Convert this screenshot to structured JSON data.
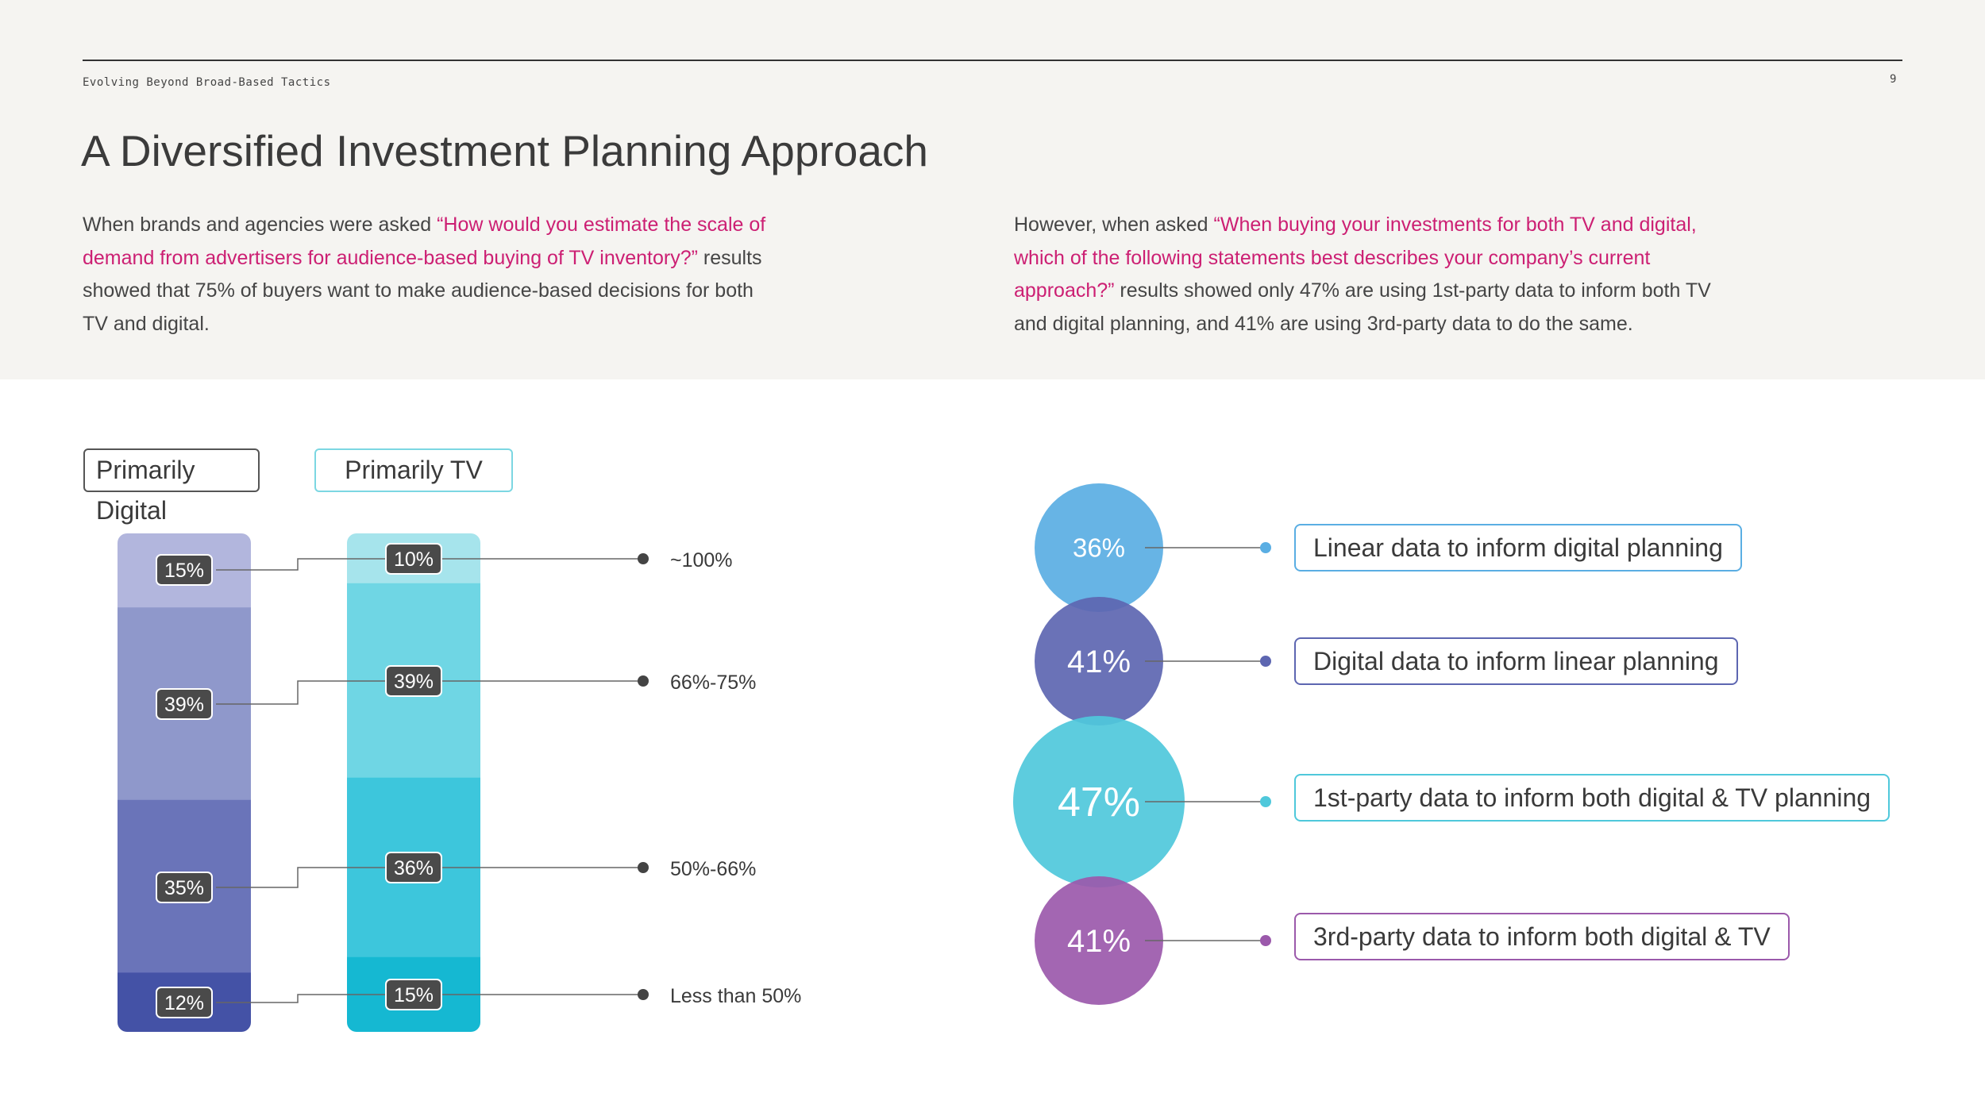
{
  "header": {
    "section_label": "Evolving Beyond Broad-Based Tactics",
    "page_number": "9",
    "title": "A Diversified Investment Planning Approach"
  },
  "intro_left": {
    "lead": "When brands and agencies were asked ",
    "quote": "“How would you estimate the scale of demand from advertisers for audience-based buying of TV inventory?”",
    "tail": " results showed that 75% of buyers want to make audience-based decisions for both TV and digital."
  },
  "intro_right": {
    "lead": "However, when asked ",
    "quote": "“When buying your investments for both TV and digital, which of the following statements best describes your company’s current approach?”",
    "tail": " results showed only 47% are using 1st-party data to inform both TV and digital planning, and 41% are using 3rd-party data to do the same."
  },
  "chart_data": [
    {
      "type": "bar",
      "stacked": true,
      "legend": [
        "Primarily Digital",
        "Primarily TV"
      ],
      "categories": [
        "~100%",
        "66%-75%",
        "50%-66%",
        "Less than 50%"
      ],
      "series": [
        {
          "name": "Primarily Digital",
          "values": [
            15,
            39,
            35,
            12
          ],
          "labels": [
            "15%",
            "39%",
            "35%",
            "12%"
          ],
          "colors": [
            "#b2b6dd",
            "#8f98cb",
            "#6a74b9",
            "#4452a6"
          ]
        },
        {
          "name": "Primarily TV",
          "values": [
            10,
            39,
            36,
            15
          ],
          "labels": [
            "10%",
            "39%",
            "36%",
            "15%"
          ],
          "colors": [
            "#a6e4ec",
            "#6fd6e4",
            "#3dc6dc",
            "#15b8d2"
          ]
        }
      ]
    },
    {
      "type": "bubble",
      "items": [
        {
          "value": 36,
          "label": "36%",
          "text": "Linear data to inform digital planning",
          "color": "#5aaee3",
          "border": "#5aaee3"
        },
        {
          "value": 41,
          "label": "41%",
          "text": "Digital data to inform linear planning",
          "color": "#5d66b1",
          "border": "#5d66b1"
        },
        {
          "value": 47,
          "label": "47%",
          "text": "1st-party data to inform both digital & TV planning",
          "color": "#4fc8db",
          "border": "#4fc8db"
        },
        {
          "value": 41,
          "label": "41%",
          "text": "3rd-party data to inform both digital & TV",
          "color": "#9b59ab",
          "border": "#9b59ab"
        }
      ]
    }
  ]
}
